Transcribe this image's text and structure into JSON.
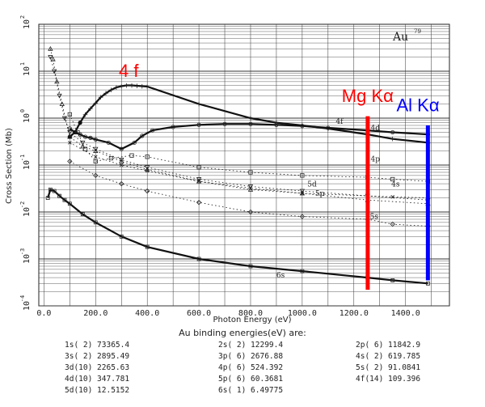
{
  "chart_data": {
    "type": "scatter",
    "title": "Au",
    "title_sup": "79",
    "xlabel": "Photon Energy (eV)",
    "ylabel": "Cross Section (Mb)",
    "xlim": [
      -20,
      1570
    ],
    "ylim_log10": [
      -4,
      2
    ],
    "y_scale": "log",
    "x_ticks": [
      "0.0",
      "200.0",
      "400.0",
      "600.0",
      "800.0",
      "1000.0",
      "1200.0",
      "1400.0"
    ],
    "y_ticks": [
      "10",
      "10",
      "10",
      "10",
      "10",
      "10",
      "10"
    ],
    "y_tick_exponents": [
      "-4",
      "-3",
      "-2",
      "-1",
      "0",
      "1",
      "2"
    ],
    "grid": true,
    "series": [
      {
        "name": "4f",
        "points": [
          [
            100,
            0.4
          ],
          [
            120,
            0.5
          ],
          [
            140,
            0.8
          ],
          [
            160,
            1.2
          ],
          [
            180,
            1.6
          ],
          [
            200,
            2.1
          ],
          [
            220,
            2.8
          ],
          [
            240,
            3.4
          ],
          [
            260,
            4.0
          ],
          [
            280,
            4.5
          ],
          [
            300,
            4.8
          ],
          [
            320,
            5.0
          ],
          [
            340,
            5.0
          ],
          [
            360,
            4.9
          ],
          [
            380,
            4.8
          ],
          [
            400,
            4.7
          ],
          [
            600,
            2.0
          ],
          [
            800,
            1.0
          ],
          [
            900,
            0.8
          ],
          [
            1000,
            0.7
          ],
          [
            1100,
            0.6
          ],
          [
            1253,
            0.45
          ],
          [
            1350,
            0.36
          ],
          [
            1487,
            0.3
          ]
        ]
      },
      {
        "name": "4d",
        "points": [
          [
            100,
            0.6
          ],
          [
            120,
            0.5
          ],
          [
            140,
            0.45
          ],
          [
            160,
            0.4
          ],
          [
            180,
            0.38
          ],
          [
            200,
            0.35
          ],
          [
            250,
            0.3
          ],
          [
            300,
            0.22
          ],
          [
            350,
            0.3
          ],
          [
            380,
            0.42
          ],
          [
            420,
            0.55
          ],
          [
            500,
            0.65
          ],
          [
            600,
            0.72
          ],
          [
            700,
            0.75
          ],
          [
            800,
            0.75
          ],
          [
            900,
            0.72
          ],
          [
            1000,
            0.68
          ],
          [
            1100,
            0.62
          ],
          [
            1253,
            0.55
          ],
          [
            1350,
            0.5
          ],
          [
            1487,
            0.45
          ]
        ]
      },
      {
        "name": "4p",
        "points": [
          [
            100,
            1.2
          ],
          [
            130,
            0.5
          ],
          [
            160,
            0.22
          ],
          [
            200,
            0.12
          ],
          [
            260,
            0.14
          ],
          [
            340,
            0.16
          ],
          [
            400,
            0.15
          ],
          [
            600,
            0.09
          ],
          [
            800,
            0.07
          ],
          [
            1000,
            0.06
          ],
          [
            1253,
            0.055
          ],
          [
            1350,
            0.05
          ],
          [
            1487,
            0.045
          ]
        ]
      },
      {
        "name": "4s",
        "points": [
          [
            100,
            0.3
          ],
          [
            200,
            0.15
          ],
          [
            300,
            0.1
          ],
          [
            400,
            0.075
          ],
          [
            600,
            0.045
          ],
          [
            800,
            0.032
          ],
          [
            1000,
            0.025
          ],
          [
            1253,
            0.022
          ],
          [
            1350,
            0.021
          ],
          [
            1487,
            0.02
          ]
        ]
      },
      {
        "name": "5d",
        "points": [
          [
            25,
            20
          ],
          [
            40,
            10
          ],
          [
            60,
            3.0
          ],
          [
            80,
            1.0
          ],
          [
            100,
            0.5
          ],
          [
            150,
            0.3
          ],
          [
            200,
            0.22
          ],
          [
            300,
            0.13
          ],
          [
            400,
            0.09
          ],
          [
            600,
            0.05
          ],
          [
            800,
            0.035
          ],
          [
            1000,
            0.028
          ],
          [
            1253,
            0.022
          ],
          [
            1487,
            0.018
          ]
        ]
      },
      {
        "name": "5p",
        "points": [
          [
            25,
            30
          ],
          [
            35,
            18
          ],
          [
            50,
            6.0
          ],
          [
            70,
            2.0
          ],
          [
            100,
            0.4
          ],
          [
            150,
            0.25
          ],
          [
            200,
            0.2
          ],
          [
            300,
            0.12
          ],
          [
            400,
            0.08
          ],
          [
            600,
            0.045
          ],
          [
            800,
            0.03
          ],
          [
            1000,
            0.025
          ],
          [
            1253,
            0.018
          ],
          [
            1487,
            0.015
          ]
        ]
      },
      {
        "name": "5s",
        "points": [
          [
            100,
            0.12
          ],
          [
            200,
            0.06
          ],
          [
            300,
            0.04
          ],
          [
            400,
            0.028
          ],
          [
            600,
            0.016
          ],
          [
            800,
            0.01
          ],
          [
            1000,
            0.008
          ],
          [
            1253,
            0.007
          ],
          [
            1350,
            0.0055
          ],
          [
            1487,
            0.005
          ]
        ]
      },
      {
        "name": "6s",
        "points": [
          [
            15,
            0.02
          ],
          [
            25,
            0.03
          ],
          [
            40,
            0.028
          ],
          [
            60,
            0.022
          ],
          [
            80,
            0.018
          ],
          [
            100,
            0.015
          ],
          [
            150,
            0.009
          ],
          [
            200,
            0.006
          ],
          [
            300,
            0.003
          ],
          [
            400,
            0.0018
          ],
          [
            600,
            0.001
          ],
          [
            800,
            0.0007
          ],
          [
            1000,
            0.00055
          ],
          [
            1253,
            0.0004
          ],
          [
            1350,
            0.00035
          ],
          [
            1487,
            0.0003
          ]
        ]
      }
    ],
    "annotations": [
      {
        "text": "4 f",
        "color": "#ff0000",
        "x": 290,
        "y": 7.5
      },
      {
        "text": "Mg Kα",
        "color": "#ff0000",
        "x": 1153,
        "y": 2.2
      },
      {
        "text": "Al Kα",
        "color": "#0000ff",
        "x": 1365,
        "y": 1.4
      }
    ],
    "vlines": [
      {
        "name": "Mg Kα",
        "x": 1253.6,
        "color": "#ff0000",
        "y_range": [
          0.00022,
          1.1
        ]
      },
      {
        "name": "Al Kα",
        "x": 1486.6,
        "color": "#0000ff",
        "y_range": [
          0.00035,
          0.7
        ]
      }
    ],
    "colors": {
      "mg_line": "#ff0000",
      "al_line": "#0000ff",
      "grid": "#333333",
      "markers": "#222222"
    }
  },
  "binding_energies": {
    "title": "Au binding energies(eV) are:",
    "rows": [
      [
        "1s( 2) 73365.4",
        "2s( 2) 12299.4",
        "2p( 6) 11842.9"
      ],
      [
        "3s( 2) 2895.49",
        "3p( 6) 2676.88",
        "4s( 2) 619.785"
      ],
      [
        "3d(10) 2265.63",
        "4p( 6) 524.392",
        "5s( 2) 91.0841"
      ],
      [
        "4d(10) 347.781",
        "5p( 6) 60.3681",
        "4f(14) 109.396"
      ],
      [
        "5d(10) 12.5152",
        "6s( 1) 6.49775",
        ""
      ]
    ]
  }
}
